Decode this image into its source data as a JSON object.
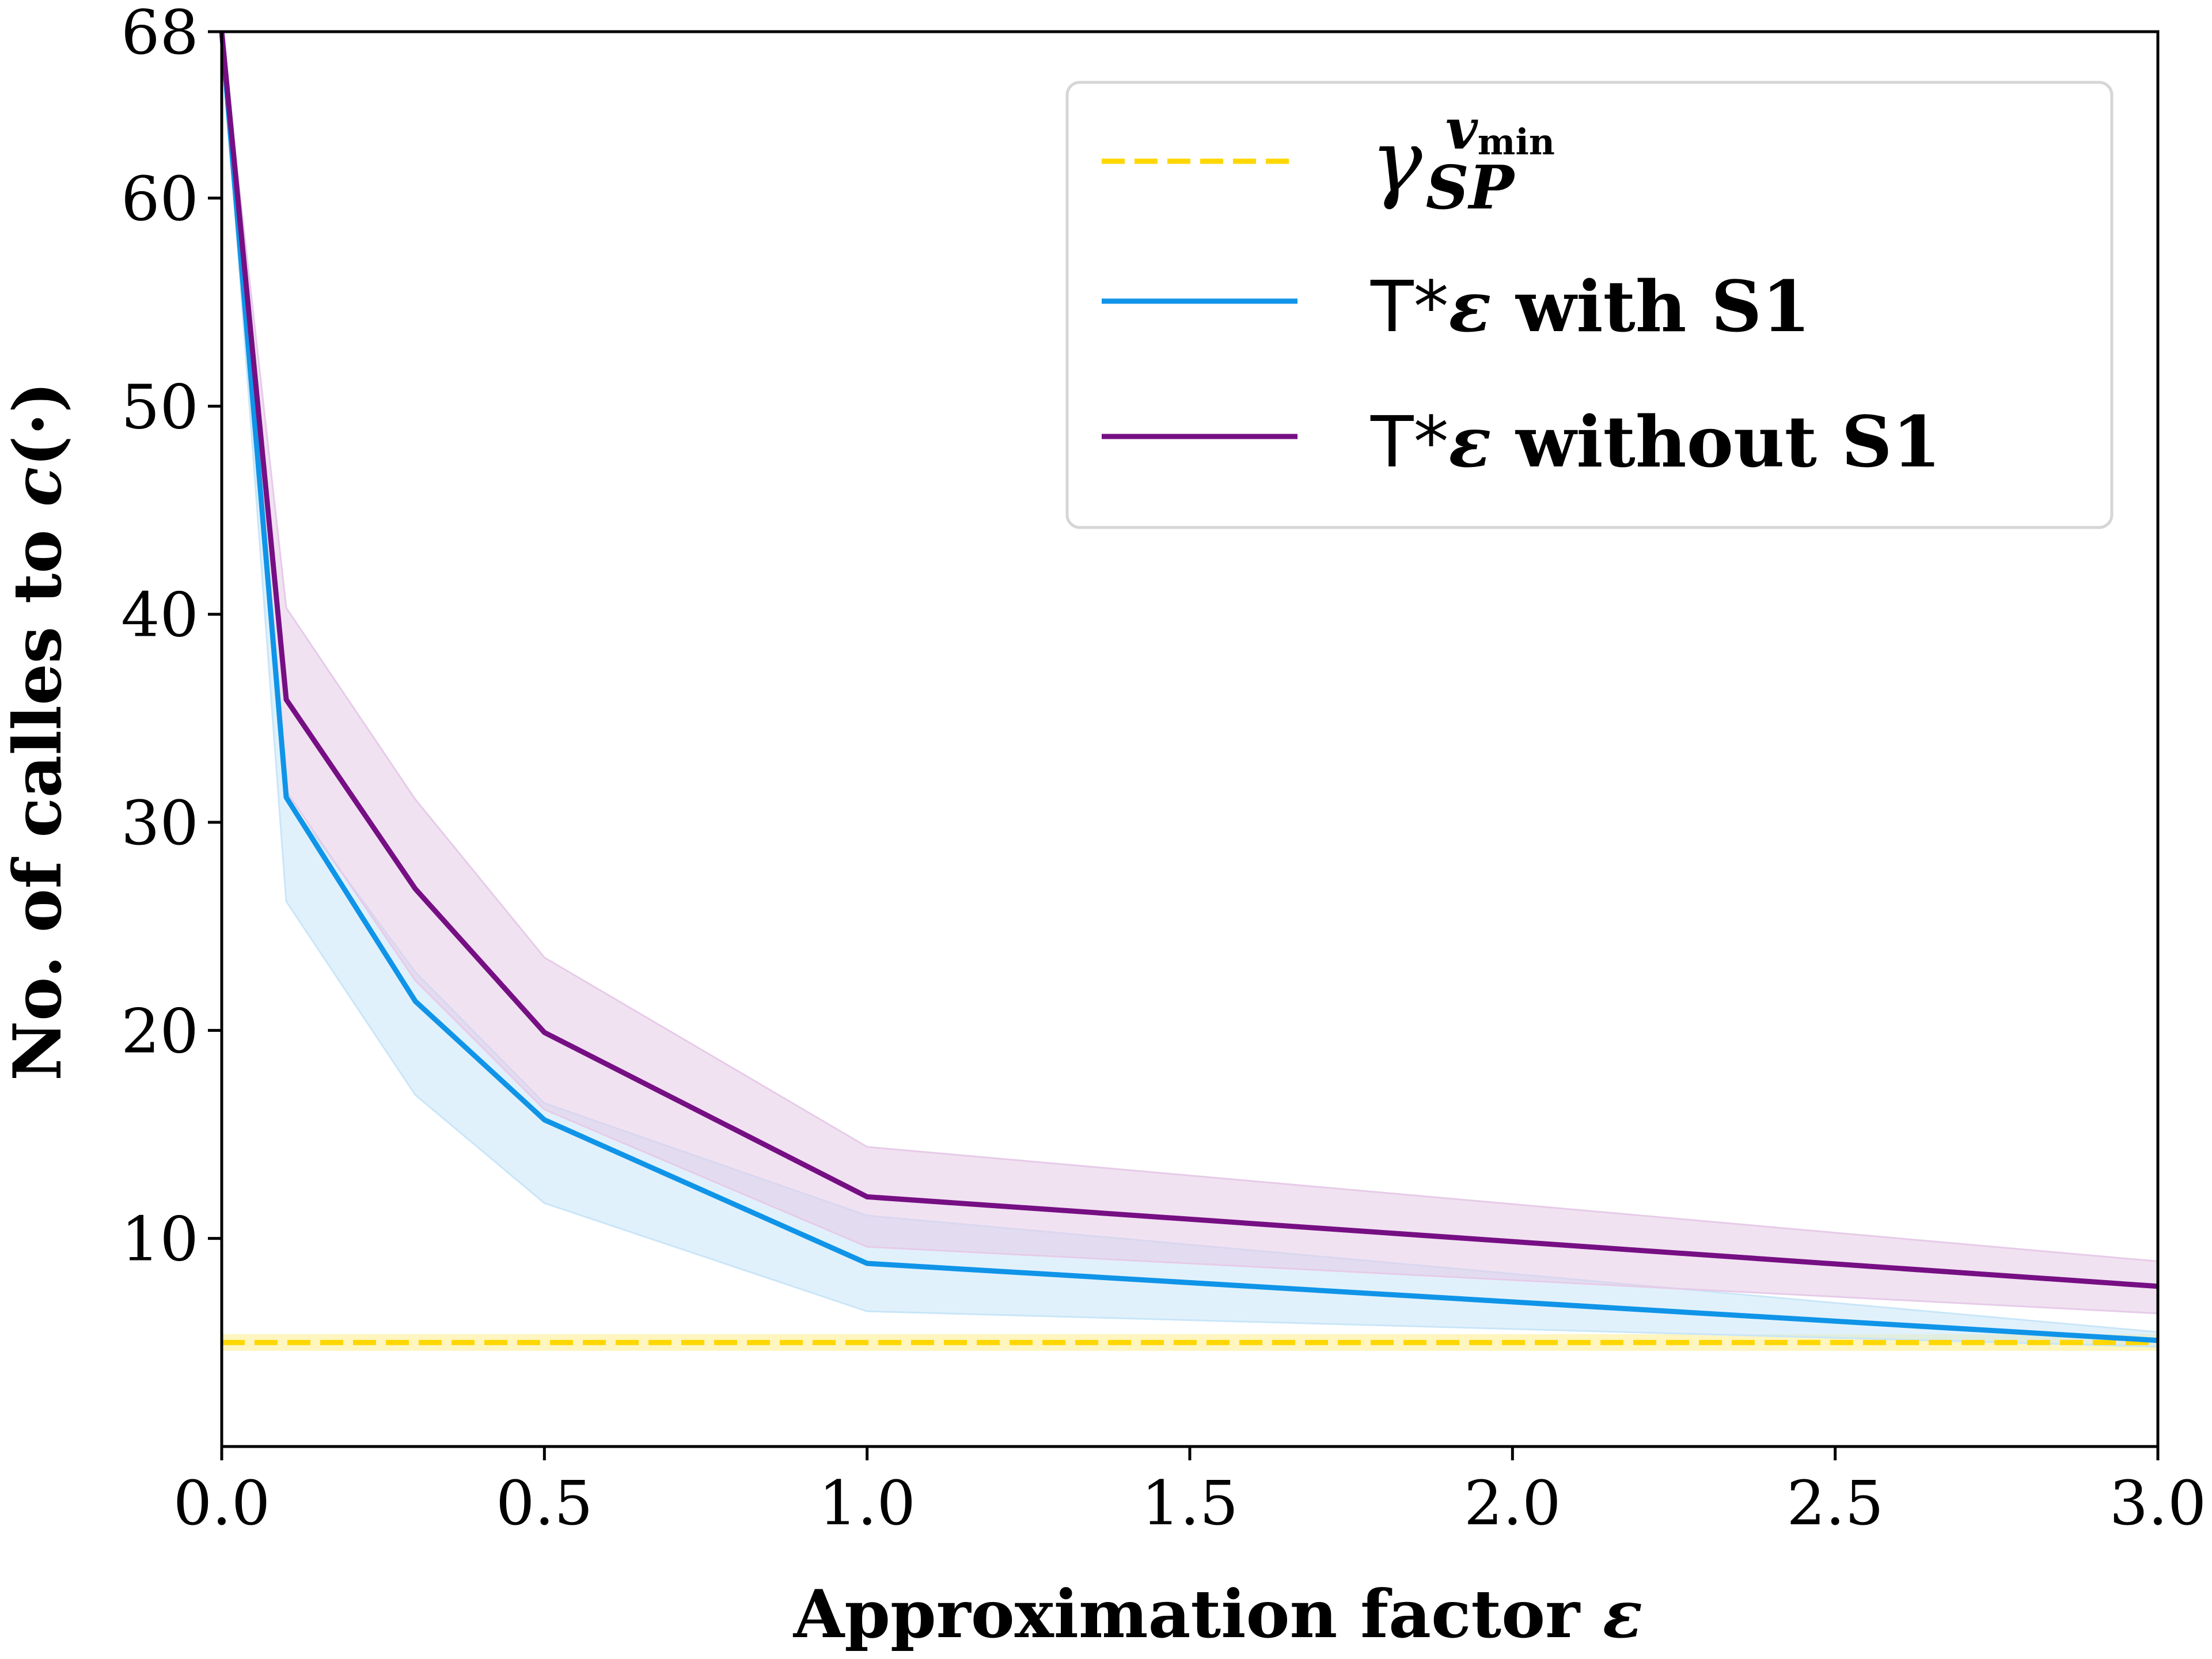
{
  "chart_data": {
    "type": "line",
    "xlabel_parts": [
      "Approximation factor ",
      "ε"
    ],
    "ylabel_parts": [
      "No. of calles to ",
      "c",
      "(·)"
    ],
    "xlim": [
      0.0,
      3.0
    ],
    "ylim": [
      0,
      68
    ],
    "xticks": [
      0.0,
      0.5,
      1.0,
      1.5,
      2.0,
      2.5,
      3.0
    ],
    "xtick_labels": [
      "0.0",
      "0.5",
      "1.0",
      "1.5",
      "2.0",
      "2.5",
      "3.0"
    ],
    "yticks": [
      10,
      20,
      30,
      40,
      50,
      60,
      68
    ],
    "ytick_labels": [
      "10",
      "20",
      "30",
      "40",
      "50",
      "60",
      "68"
    ],
    "grid": false,
    "legend_position": "top-right",
    "x": [
      0.0,
      0.1,
      0.3,
      0.5,
      1.0,
      3.0
    ],
    "series": [
      {
        "key": "baseline",
        "name_parts": {
          "base": "γ",
          "sub": "SP",
          "sup": "v",
          "sup_sub": "min"
        },
        "style": "dashed",
        "color": "#ffd700",
        "constant": 5.0,
        "band": [
          4.6,
          5.4
        ]
      },
      {
        "key": "with_s1",
        "name_parts": [
          "T*",
          "ε",
          " with S1"
        ],
        "style": "solid",
        "color": "#0f94e8",
        "band_color": "#c9e6f8",
        "values": [
          68,
          31.2,
          21.4,
          15.7,
          8.8,
          5.1
        ],
        "lower": [
          68,
          26.2,
          16.9,
          11.7,
          6.5,
          4.8
        ],
        "upper": [
          68,
          31.2,
          22.8,
          16.5,
          11.1,
          5.5
        ]
      },
      {
        "key": "without_s1",
        "name_parts": [
          "T*",
          "ε",
          " without S1"
        ],
        "style": "solid",
        "color": "#760f83",
        "band_color": "#e6cbe8",
        "values": [
          68,
          35.9,
          26.8,
          19.9,
          12.0,
          7.7
        ],
        "lower": [
          68,
          31.5,
          22.4,
          16.2,
          9.6,
          6.4
        ],
        "upper": [
          68,
          40.3,
          31.1,
          23.5,
          14.4,
          8.9
        ]
      }
    ]
  }
}
